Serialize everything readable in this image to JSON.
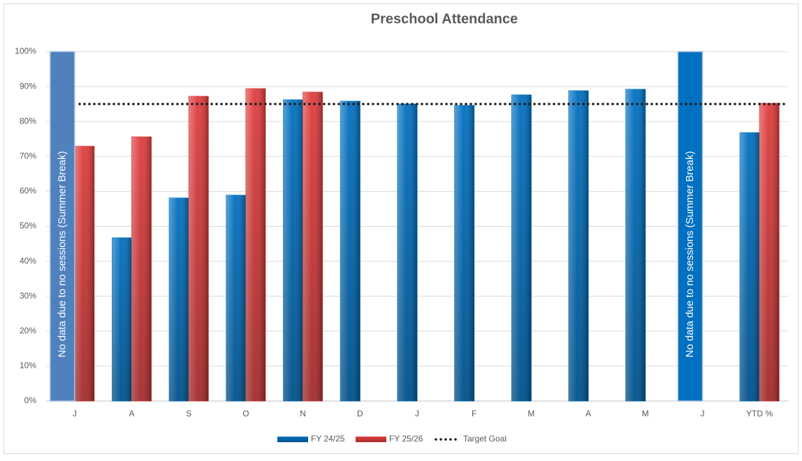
{
  "chart_data": {
    "type": "bar",
    "title": "Preschool Attendance",
    "categories": [
      "J",
      "A",
      "S",
      "O",
      "N",
      "D",
      "J",
      "F",
      "M",
      "A",
      "M",
      "J",
      "YTD %"
    ],
    "series": [
      {
        "name": "FY 24/25",
        "color": "#0070C0",
        "values": [
          null,
          46.7,
          58.1,
          58.9,
          86.2,
          85.8,
          85.0,
          84.6,
          87.6,
          88.8,
          89.2,
          null,
          76.8
        ]
      },
      {
        "name": "FY 25/26",
        "color": "#E03C3C",
        "values": [
          72.9,
          75.6,
          87.2,
          89.4,
          88.4,
          null,
          null,
          null,
          null,
          null,
          null,
          null,
          85.2
        ]
      }
    ],
    "target": {
      "name": "Target Goal",
      "value": 85,
      "color": "#1a1a1a"
    },
    "annotations": [
      {
        "text": "No data due to no sessions (Summer Break)",
        "color": "#4F81BD"
      },
      {
        "text": "No data due to no sessions (Summer Break)",
        "color": "#0070C0"
      }
    ],
    "ylim": [
      0,
      100
    ],
    "yticks": [
      {
        "value": 0,
        "label": "0%"
      },
      {
        "value": 10,
        "label": "10%"
      },
      {
        "value": 20,
        "label": "20%"
      },
      {
        "value": 30,
        "label": "30%"
      },
      {
        "value": 40,
        "label": "40%"
      },
      {
        "value": 50,
        "label": "50%"
      },
      {
        "value": 60,
        "label": "60%"
      },
      {
        "value": 70,
        "label": "70%"
      },
      {
        "value": 80,
        "label": "80%"
      },
      {
        "value": 90,
        "label": "90%"
      },
      {
        "value": 100,
        "label": "100%"
      }
    ],
    "grid": true,
    "legend": "bottom"
  }
}
